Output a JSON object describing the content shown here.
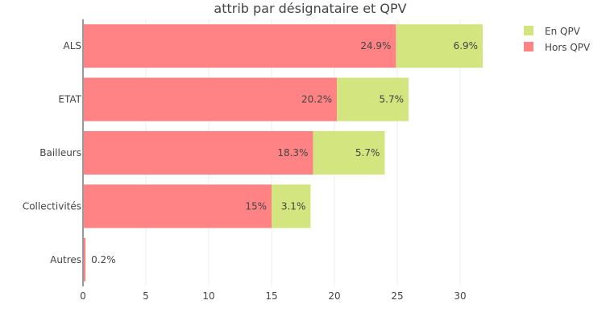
{
  "chart_data": {
    "type": "bar",
    "orientation": "horizontal",
    "stacked": true,
    "title": "attrib par désignataire et QPV",
    "xlabel": "",
    "ylabel": "",
    "categories": [
      "ALS",
      "ETAT",
      "Bailleurs",
      "Collectivités",
      "Autres"
    ],
    "series": [
      {
        "name": "Hors QPV",
        "color": "#ff8385",
        "values": [
          24.9,
          20.2,
          18.3,
          15,
          0.2
        ],
        "labels": [
          "24.9%",
          "20.2%",
          "18.3%",
          "15%",
          "0.2%"
        ]
      },
      {
        "name": "En QPV",
        "color": "#d2e57f",
        "values": [
          6.9,
          5.7,
          5.7,
          3.1,
          0
        ],
        "labels": [
          "6.9%",
          "5.7%",
          "5.7%",
          "3.1%",
          ""
        ]
      }
    ],
    "xlim": [
      0,
      32.5
    ],
    "xticks": [
      "0",
      "5",
      "10",
      "15",
      "20",
      "25",
      "30"
    ],
    "grid": true,
    "legend_position": "top-right",
    "legend": [
      "En QPV",
      "Hors QPV"
    ]
  }
}
